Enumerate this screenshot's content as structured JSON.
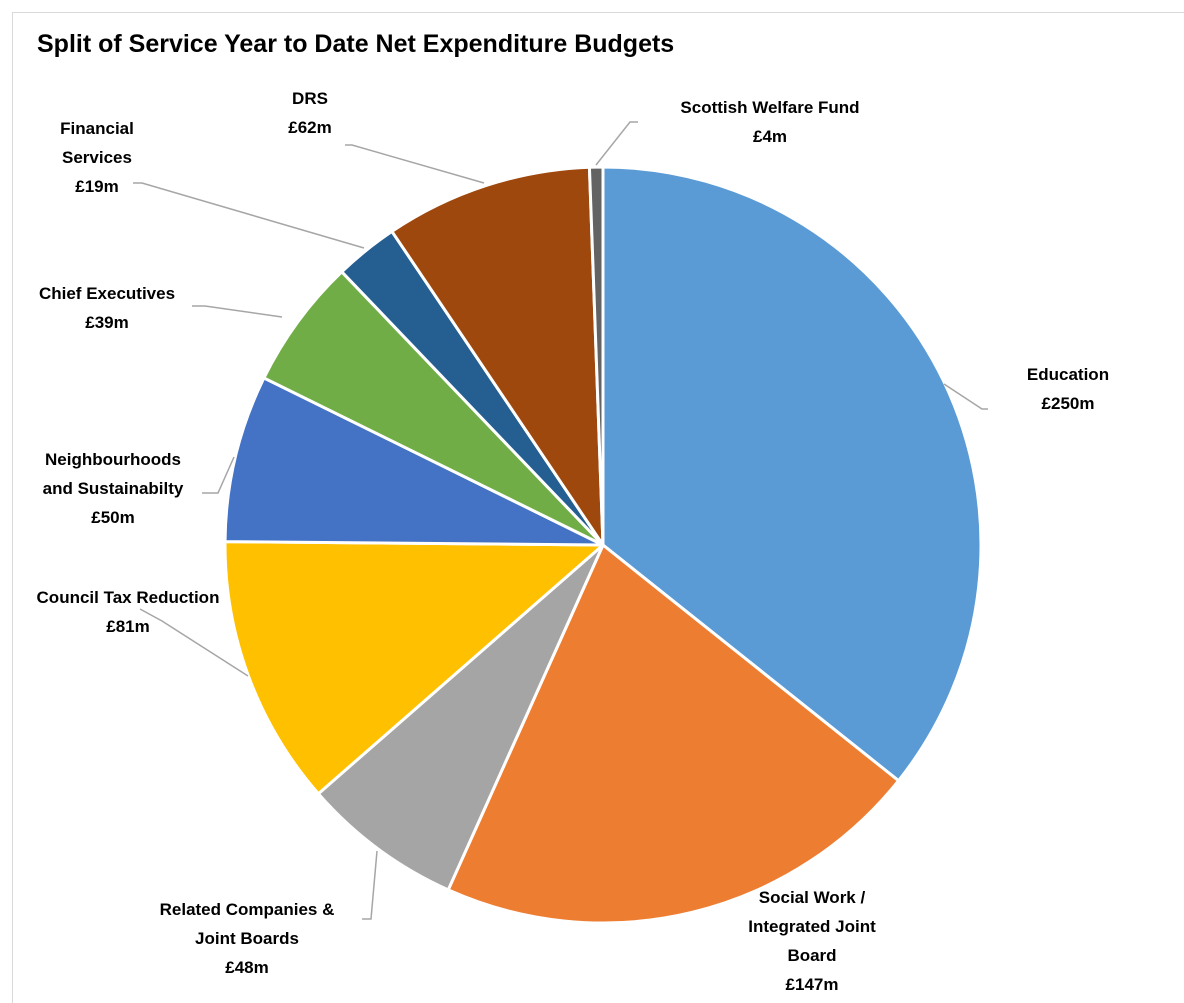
{
  "chart_data": {
    "type": "pie",
    "title": "Split of Service Year to Date Net Expenditure Budgets",
    "unit": "£m",
    "slices": [
      {
        "name": "Education",
        "label_lines": [
          "Education",
          "£250m"
        ],
        "value": 250,
        "color": "#5B9BD5"
      },
      {
        "name": "Social Work / Integrated Joint Board",
        "label_lines": [
          "Social Work /",
          "Integrated Joint",
          "Board",
          "£147m"
        ],
        "value": 147,
        "color": "#ED7D31"
      },
      {
        "name": "Related Companies & Joint Boards",
        "label_lines": [
          "Related Companies &",
          "Joint Boards",
          "£48m"
        ],
        "value": 48,
        "color": "#A5A5A5"
      },
      {
        "name": "Council Tax Reduction",
        "label_lines": [
          "Council Tax Reduction",
          "£81m"
        ],
        "value": 81,
        "color": "#FFC000"
      },
      {
        "name": "Neighbourhoods and Sustainabilty",
        "label_lines": [
          "Neighbourhoods",
          "and Sustainabilty",
          "£50m"
        ],
        "value": 50,
        "color": "#4472C4"
      },
      {
        "name": "Chief Executives",
        "label_lines": [
          "Chief Executives",
          "£39m"
        ],
        "value": 39,
        "color": "#70AD47"
      },
      {
        "name": "Financial Services",
        "label_lines": [
          "Financial",
          "Services",
          "£19m"
        ],
        "value": 19,
        "color": "#255E91"
      },
      {
        "name": "DRS",
        "label_lines": [
          "DRS",
          "£62m"
        ],
        "value": 62,
        "color": "#9E480E"
      },
      {
        "name": "Scottish Welfare Fund",
        "label_lines": [
          "Scottish Welfare Fund",
          "£4m"
        ],
        "value": 4,
        "color": "#636363"
      }
    ]
  }
}
